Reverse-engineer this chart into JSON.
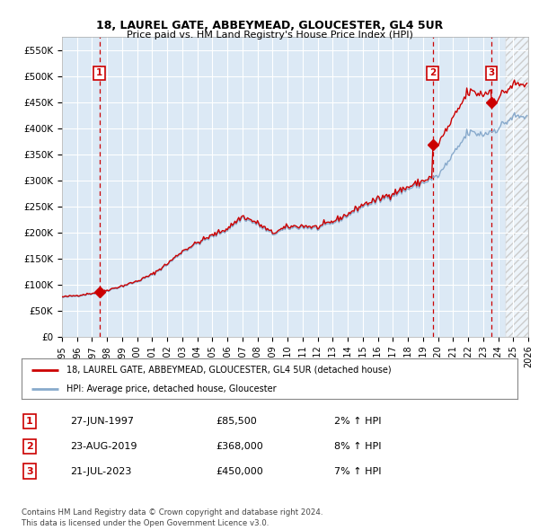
{
  "title1": "18, LAUREL GATE, ABBEYMEAD, GLOUCESTER, GL4 5UR",
  "title2": "Price paid vs. HM Land Registry's House Price Index (HPI)",
  "ylim": [
    0,
    575000
  ],
  "yticks": [
    0,
    50000,
    100000,
    150000,
    200000,
    250000,
    300000,
    350000,
    400000,
    450000,
    500000,
    550000
  ],
  "ytick_labels": [
    "£0",
    "£50K",
    "£100K",
    "£150K",
    "£200K",
    "£250K",
    "£300K",
    "£350K",
    "£400K",
    "£450K",
    "£500K",
    "£550K"
  ],
  "background_color": "#ffffff",
  "plot_bg_color": "#dce9f5",
  "grid_color": "#ffffff",
  "sale_dates_num": [
    1997.49,
    2019.645,
    2023.545
  ],
  "sale_prices": [
    85500,
    368000,
    450000
  ],
  "sale_labels": [
    "1",
    "2",
    "3"
  ],
  "sale_color": "#cc0000",
  "hpi_color": "#88aacc",
  "vline_color": "#cc0000",
  "legend_red_label": "18, LAUREL GATE, ABBEYMEAD, GLOUCESTER, GL4 5UR (detached house)",
  "legend_blue_label": "HPI: Average price, detached house, Gloucester",
  "table_rows": [
    {
      "num": "1",
      "date": "27-JUN-1997",
      "price": "£85,500",
      "hpi": "2% ↑ HPI"
    },
    {
      "num": "2",
      "date": "23-AUG-2019",
      "price": "£368,000",
      "hpi": "8% ↑ HPI"
    },
    {
      "num": "3",
      "date": "21-JUL-2023",
      "price": "£450,000",
      "hpi": "7% ↑ HPI"
    }
  ],
  "footer": "Contains HM Land Registry data © Crown copyright and database right 2024.\nThis data is licensed under the Open Government Licence v3.0.",
  "xlim_start": 1995.0,
  "xlim_end": 2026.0,
  "hatch_start": 2024.5,
  "xtick_years": [
    1995,
    1996,
    1997,
    1998,
    1999,
    2000,
    2001,
    2002,
    2003,
    2004,
    2005,
    2006,
    2007,
    2008,
    2009,
    2010,
    2011,
    2012,
    2013,
    2014,
    2015,
    2016,
    2017,
    2018,
    2019,
    2020,
    2021,
    2022,
    2023,
    2024,
    2025,
    2026
  ]
}
